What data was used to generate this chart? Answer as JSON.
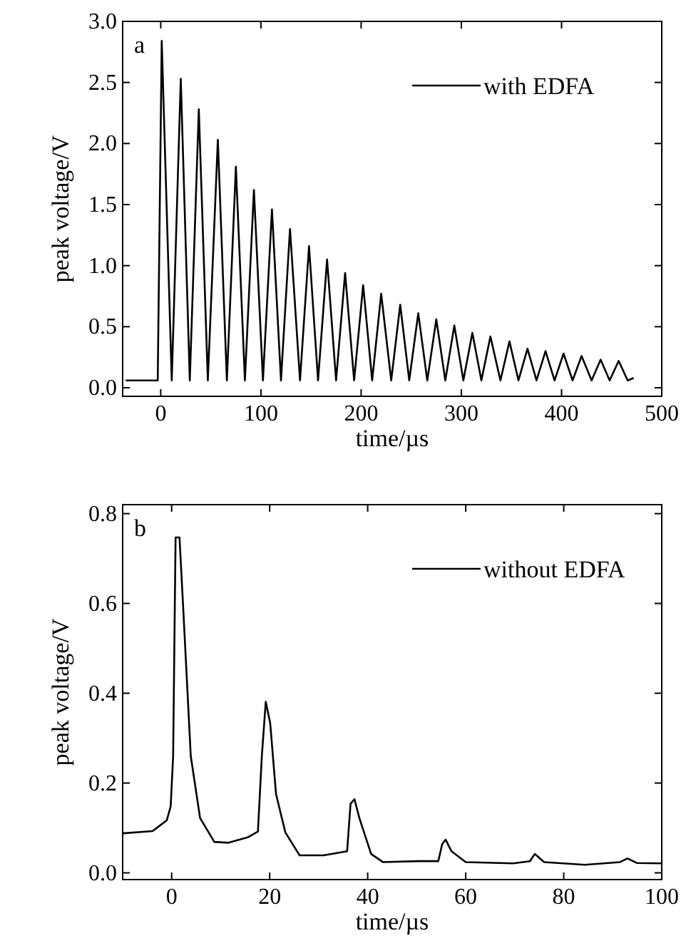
{
  "chart_data": [
    {
      "type": "line",
      "xlabel": "time/µs",
      "ylabel": "peak voltage/V",
      "annotations": [
        "a"
      ],
      "legend": "top right",
      "xlim": [
        -38,
        500
      ],
      "ylim": [
        -0.07,
        3.0
      ],
      "xticks": [
        0,
        100,
        200,
        300,
        400,
        500
      ],
      "yticks": [
        {
          "value": 0,
          "label": "0.0"
        },
        {
          "value": 0.5,
          "label": "0.5"
        },
        {
          "value": 1,
          "label": "1.0"
        },
        {
          "value": 1.5,
          "label": "1.5"
        },
        {
          "value": 2,
          "label": "2.0"
        },
        {
          "value": 2.5,
          "label": "2.5"
        },
        {
          "value": 3,
          "label": "3.0"
        }
      ],
      "series": [
        {
          "name": "with EDFA",
          "color": "#000000",
          "x": [
            -35,
            -3,
            1,
            11,
            20,
            29,
            38,
            47,
            57,
            66,
            75,
            84,
            93,
            102,
            111,
            120,
            129,
            139,
            148,
            157,
            166,
            175,
            184,
            193,
            202,
            211,
            220,
            230,
            239,
            248,
            257,
            266,
            275,
            284,
            293,
            302,
            311,
            320,
            329,
            339,
            348,
            357,
            366,
            375,
            384,
            393,
            402,
            411,
            420,
            430,
            439,
            448,
            457,
            466,
            472
          ],
          "values": [
            0.06,
            0.06,
            2.84,
            0.06,
            2.53,
            0.06,
            2.28,
            0.06,
            2.03,
            0.06,
            1.81,
            0.06,
            1.62,
            0.06,
            1.46,
            0.06,
            1.3,
            0.06,
            1.16,
            0.06,
            1.05,
            0.06,
            0.94,
            0.06,
            0.84,
            0.06,
            0.77,
            0.06,
            0.68,
            0.06,
            0.61,
            0.06,
            0.56,
            0.06,
            0.51,
            0.06,
            0.45,
            0.06,
            0.42,
            0.06,
            0.38,
            0.06,
            0.32,
            0.06,
            0.3,
            0.06,
            0.28,
            0.06,
            0.26,
            0.06,
            0.23,
            0.06,
            0.22,
            0.06,
            0.08
          ]
        }
      ]
    },
    {
      "type": "line",
      "xlabel": "time/µs",
      "ylabel": "peak voltage/V",
      "annotations": [
        "b"
      ],
      "legend": "top right",
      "xlim": [
        -10,
        100
      ],
      "ylim": [
        -0.015,
        0.82
      ],
      "xticks": [
        0,
        20,
        40,
        60,
        80,
        100
      ],
      "yticks": [
        {
          "value": 0,
          "label": "0.0"
        },
        {
          "value": 0.2,
          "label": "0.2"
        },
        {
          "value": 0.4,
          "label": "0.4"
        },
        {
          "value": 0.6,
          "label": "0.6"
        },
        {
          "value": 0.8,
          "label": "0.8"
        }
      ],
      "series": [
        {
          "name": "without EDFA",
          "color": "#000000",
          "x": [
            -10,
            -3.9,
            -1,
            -0.2,
            0.3,
            0.8,
            1.6,
            2.4,
            3.9,
            5.8,
            8.7,
            11.6,
            15.5,
            17.6,
            18.4,
            19.2,
            20.1,
            21.3,
            23.2,
            26.1,
            31,
            35.8,
            36.5,
            37.3,
            38.3,
            40.7,
            43.1,
            50.4,
            54.4,
            55.2,
            55.9,
            57.1,
            60,
            69.7,
            73.1,
            74.1,
            76,
            84.3,
            91.5,
            93,
            94.9,
            100
          ],
          "values": [
            0.088,
            0.093,
            0.117,
            0.148,
            0.26,
            0.747,
            0.747,
            0.58,
            0.26,
            0.122,
            0.069,
            0.067,
            0.079,
            0.092,
            0.26,
            0.381,
            0.334,
            0.175,
            0.09,
            0.039,
            0.039,
            0.048,
            0.154,
            0.164,
            0.122,
            0.042,
            0.024,
            0.026,
            0.026,
            0.064,
            0.074,
            0.048,
            0.024,
            0.021,
            0.026,
            0.042,
            0.024,
            0.018,
            0.024,
            0.032,
            0.022,
            0.021
          ]
        }
      ]
    }
  ]
}
